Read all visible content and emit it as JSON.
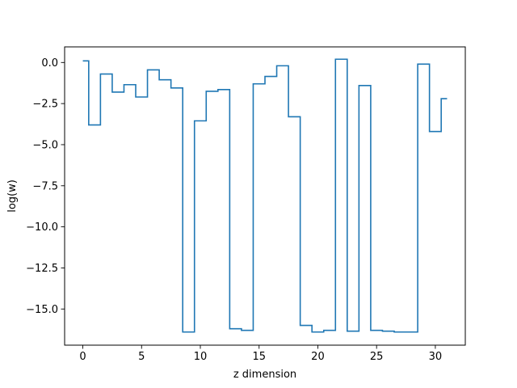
{
  "chart_data": {
    "type": "line",
    "drawstyle": "steps-mid",
    "title": "",
    "xlabel": "z dimension",
    "ylabel": "log(w)",
    "xlim": [
      -1.55,
      32.55
    ],
    "ylim": [
      -17.2,
      0.95
    ],
    "grid": false,
    "legend": "none",
    "xticks": [
      0,
      5,
      10,
      15,
      20,
      25,
      30
    ],
    "xtick_labels": [
      "0",
      "5",
      "10",
      "15",
      "20",
      "25",
      "30"
    ],
    "yticks": [
      0.0,
      -2.5,
      -5.0,
      -7.5,
      -10.0,
      -12.5,
      -15.0
    ],
    "ytick_labels": [
      "0.0",
      "−2.5",
      "−5.0",
      "−7.5",
      "−10.0",
      "−12.5",
      "−15.0"
    ],
    "series": [
      {
        "color": "#1f77b4",
        "x": [
          0,
          1,
          2,
          3,
          4,
          5,
          6,
          7,
          8,
          9,
          10,
          11,
          12,
          13,
          14,
          15,
          16,
          17,
          18,
          19,
          20,
          21,
          22,
          23,
          24,
          25,
          26,
          27,
          28,
          29,
          30,
          31
        ],
        "y": [
          0.1,
          -3.8,
          -0.7,
          -1.8,
          -1.35,
          -2.1,
          -0.45,
          -1.05,
          -1.55,
          -16.4,
          -3.55,
          -1.75,
          -1.65,
          -16.2,
          -16.3,
          -1.3,
          -0.85,
          -0.2,
          -3.3,
          -16.0,
          -16.4,
          -16.3,
          0.2,
          -16.35,
          -1.4,
          -16.3,
          -16.35,
          -16.4,
          -16.4,
          -0.1,
          -4.2,
          -2.2
        ]
      }
    ]
  }
}
